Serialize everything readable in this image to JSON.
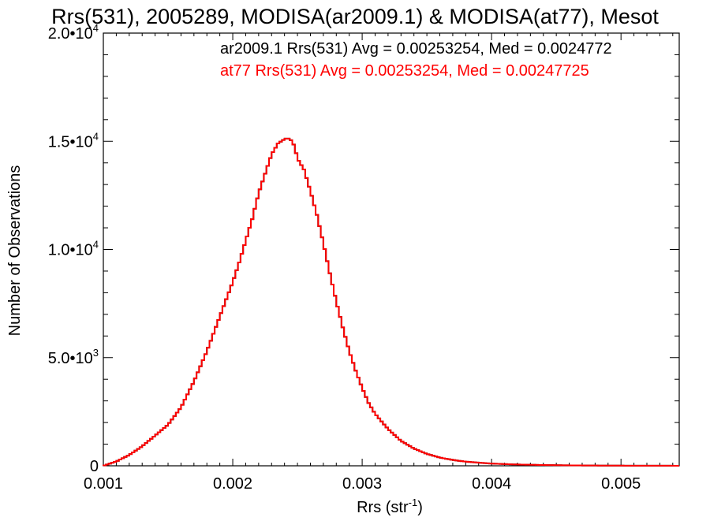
{
  "chart_data": {
    "type": "histogram",
    "title": "Rrs(531), 2005289, MODISA(ar2009.1) & MODISA(at77), Mesot",
    "xlabel": "Rrs (str",
    "xlabel_sup": "-1",
    "xlabel_close": ")",
    "ylabel": "Number of Observations",
    "xlim": [
      0.001,
      0.00545
    ],
    "ylim": [
      0,
      20000
    ],
    "grid": false,
    "x_ticks": [
      {
        "value": 0.001,
        "label": "0.001"
      },
      {
        "value": 0.002,
        "label": "0.002"
      },
      {
        "value": 0.003,
        "label": "0.003"
      },
      {
        "value": 0.004,
        "label": "0.004"
      },
      {
        "value": 0.005,
        "label": "0.005"
      }
    ],
    "y_ticks": [
      {
        "value": 0,
        "label": "0",
        "sup": ""
      },
      {
        "value": 5000,
        "label": "5.0•10",
        "sup": "3"
      },
      {
        "value": 10000,
        "label": "1.0•10",
        "sup": "4"
      },
      {
        "value": 15000,
        "label": "1.5•10",
        "sup": "4"
      },
      {
        "value": 20000,
        "label": "2.0•10",
        "sup": "4"
      }
    ],
    "legend": [
      {
        "text": "ar2009.1 Rrs(531) Avg = 0.00253254, Med = 0.0024772",
        "color": "#000000"
      },
      {
        "text": "at77 Rrs(531) Avg = 0.00253254, Med = 0.00247725",
        "color": "#ff0000"
      }
    ],
    "series": [
      {
        "name": "ar2009.1",
        "color": "#000000",
        "x": [
          0.001,
          0.0011,
          0.0012,
          0.0013,
          0.0014,
          0.0015,
          0.0016,
          0.0017,
          0.0018,
          0.0019,
          0.002,
          0.00205,
          0.0021,
          0.00215,
          0.0022,
          0.00225,
          0.0023,
          0.00235,
          0.0024,
          0.00242,
          0.00244,
          0.00246,
          0.00248,
          0.0025,
          0.00255,
          0.0026,
          0.00265,
          0.0027,
          0.00275,
          0.0028,
          0.00285,
          0.0029,
          0.00295,
          0.003,
          0.00305,
          0.0031,
          0.0032,
          0.0033,
          0.0034,
          0.0035,
          0.0036,
          0.0037,
          0.0038,
          0.004,
          0.0042,
          0.0044,
          0.0046,
          0.0048,
          0.005,
          0.0052,
          0.00545
        ],
        "y": [
          0,
          200,
          500,
          900,
          1400,
          1900,
          2700,
          3900,
          5300,
          6900,
          8500,
          9400,
          10400,
          11400,
          12600,
          13500,
          14400,
          14900,
          15100,
          15150,
          15100,
          15000,
          14700,
          14200,
          13700,
          12700,
          11600,
          10300,
          8900,
          7600,
          6400,
          5300,
          4400,
          3600,
          2900,
          2400,
          1700,
          1150,
          800,
          550,
          380,
          270,
          190,
          100,
          60,
          35,
          20,
          12,
          7,
          4,
          2
        ]
      },
      {
        "name": "at77",
        "color": "#ff0000",
        "x": [
          0.001,
          0.0011,
          0.0012,
          0.0013,
          0.0014,
          0.0015,
          0.0016,
          0.0017,
          0.0018,
          0.0019,
          0.002,
          0.00205,
          0.0021,
          0.00215,
          0.0022,
          0.00225,
          0.0023,
          0.00235,
          0.0024,
          0.00242,
          0.00244,
          0.00246,
          0.00248,
          0.0025,
          0.00255,
          0.0026,
          0.00265,
          0.0027,
          0.00275,
          0.0028,
          0.00285,
          0.0029,
          0.00295,
          0.003,
          0.00305,
          0.0031,
          0.0032,
          0.0033,
          0.0034,
          0.0035,
          0.0036,
          0.0037,
          0.0038,
          0.004,
          0.0042,
          0.0044,
          0.0046,
          0.0048,
          0.005,
          0.0052,
          0.00545
        ],
        "y": [
          0,
          200,
          500,
          900,
          1400,
          1900,
          2700,
          3900,
          5300,
          6900,
          8500,
          9400,
          10400,
          11400,
          12600,
          13500,
          14400,
          14900,
          15100,
          15150,
          15100,
          15000,
          14700,
          14200,
          13700,
          12700,
          11600,
          10300,
          8900,
          7600,
          6400,
          5300,
          4400,
          3600,
          2900,
          2400,
          1700,
          1150,
          800,
          550,
          380,
          270,
          190,
          100,
          60,
          35,
          20,
          12,
          7,
          4,
          2
        ]
      }
    ]
  }
}
